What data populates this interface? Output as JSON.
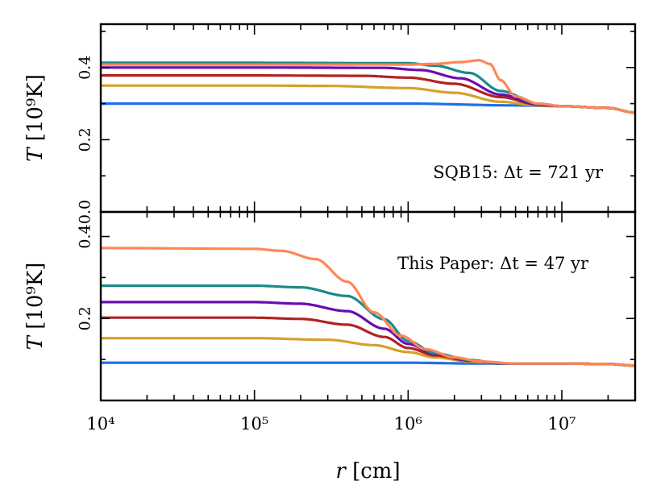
{
  "chart_data": [
    {
      "type": "line",
      "panel": "top",
      "annotation": "SQB15:  Δt = 721 yr",
      "xlabel": "",
      "ylabel": "T [10⁹K]",
      "xscale": "log",
      "xlim": [
        10000,
        30000000
      ],
      "ylim": [
        0.0,
        0.52
      ],
      "yticks": [
        0.0,
        0.2,
        0.4
      ],
      "ytick_labels": [
        "0.0",
        "0.2",
        "0.4"
      ],
      "grid": false,
      "series": [
        {
          "color": "#1f6fe5",
          "x": [
            10000,
            100000,
            1000000,
            5000000,
            10000000,
            20000000,
            30000000
          ],
          "y": [
            0.3,
            0.3,
            0.3,
            0.295,
            0.293,
            0.288,
            0.275
          ]
        },
        {
          "color": "#d6a02a",
          "x": [
            10000,
            100000,
            300000,
            1000000,
            2000000,
            4000000,
            7000000,
            10000000,
            20000000,
            30000000
          ],
          "y": [
            0.35,
            0.35,
            0.349,
            0.343,
            0.33,
            0.305,
            0.295,
            0.293,
            0.288,
            0.275
          ]
        },
        {
          "color": "#b22222",
          "x": [
            10000,
            100000,
            500000,
            1000000,
            2000000,
            4000000,
            7000000,
            10000000,
            20000000,
            30000000
          ],
          "y": [
            0.378,
            0.378,
            0.377,
            0.372,
            0.355,
            0.318,
            0.297,
            0.293,
            0.288,
            0.275
          ]
        },
        {
          "color": "#6a0dad",
          "x": [
            10000,
            100000,
            700000,
            1200000,
            2200000,
            4000000,
            7000000,
            10000000,
            20000000,
            30000000
          ],
          "y": [
            0.4,
            0.4,
            0.399,
            0.393,
            0.37,
            0.325,
            0.298,
            0.293,
            0.288,
            0.275
          ]
        },
        {
          "color": "#1a8a8a",
          "x": [
            10000,
            100000,
            1000000,
            1500000,
            2500000,
            4000000,
            7000000,
            10000000,
            20000000,
            30000000
          ],
          "y": [
            0.413,
            0.413,
            0.412,
            0.405,
            0.385,
            0.335,
            0.3,
            0.293,
            0.288,
            0.275
          ]
        },
        {
          "color": "#ff8656",
          "x": [
            10000,
            100000,
            1000000,
            1500000,
            2200000,
            2900000,
            3400000,
            4000000,
            5000000,
            7000000,
            10000000,
            20000000,
            30000000
          ],
          "y": [
            0.408,
            0.408,
            0.408,
            0.41,
            0.415,
            0.42,
            0.41,
            0.365,
            0.32,
            0.3,
            0.293,
            0.288,
            0.275
          ]
        }
      ]
    },
    {
      "type": "line",
      "panel": "bottom",
      "annotation": "This Paper:  Δt = 47 yr",
      "xlabel": "r [cm]",
      "ylabel": "T [10⁹K]",
      "xscale": "log",
      "xlim": [
        10000,
        30000000
      ],
      "ylim": [
        0.0,
        0.46
      ],
      "yticks": [
        0.2,
        0.4
      ],
      "ytick_labels": [
        "0.2",
        "0.4"
      ],
      "xticks": [
        10000,
        100000,
        1000000,
        10000000
      ],
      "xtick_labels": [
        "10⁴",
        "10⁵",
        "10⁶",
        "10⁷"
      ],
      "grid": false,
      "series": [
        {
          "color": "#1f6fe5",
          "x": [
            10000,
            100000,
            1000000,
            3000000,
            10000000,
            20000000,
            30000000
          ],
          "y": [
            0.092,
            0.092,
            0.092,
            0.09,
            0.09,
            0.089,
            0.085
          ]
        },
        {
          "color": "#d6a02a",
          "x": [
            10000,
            100000,
            300000,
            600000,
            1000000,
            1500000,
            2500000,
            4000000,
            10000000,
            20000000,
            30000000
          ],
          "y": [
            0.152,
            0.152,
            0.148,
            0.135,
            0.118,
            0.105,
            0.095,
            0.09,
            0.09,
            0.089,
            0.085
          ]
        },
        {
          "color": "#b22222",
          "x": [
            10000,
            100000,
            200000,
            400000,
            700000,
            1000000,
            1500000,
            2500000,
            4000000,
            10000000,
            20000000,
            30000000
          ],
          "y": [
            0.202,
            0.202,
            0.199,
            0.185,
            0.155,
            0.128,
            0.11,
            0.097,
            0.09,
            0.09,
            0.089,
            0.085
          ]
        },
        {
          "color": "#6a0dad",
          "x": [
            10000,
            100000,
            200000,
            400000,
            700000,
            1000000,
            1500000,
            2500000,
            4000000,
            10000000,
            20000000,
            30000000
          ],
          "y": [
            0.24,
            0.24,
            0.236,
            0.218,
            0.175,
            0.138,
            0.113,
            0.098,
            0.09,
            0.09,
            0.089,
            0.085
          ]
        },
        {
          "color": "#1a8a8a",
          "x": [
            10000,
            100000,
            200000,
            400000,
            700000,
            1000000,
            1500000,
            2500000,
            4000000,
            10000000,
            20000000,
            30000000
          ],
          "y": [
            0.28,
            0.28,
            0.276,
            0.255,
            0.198,
            0.145,
            0.115,
            0.099,
            0.09,
            0.09,
            0.089,
            0.085
          ]
        },
        {
          "color": "#ff8656",
          "x": [
            10000,
            100000,
            150000,
            250000,
            400000,
            600000,
            900000,
            1300000,
            2000000,
            3000000,
            5000000,
            10000000,
            20000000,
            30000000
          ],
          "y": [
            0.372,
            0.37,
            0.365,
            0.345,
            0.29,
            0.215,
            0.158,
            0.125,
            0.105,
            0.095,
            0.09,
            0.09,
            0.089,
            0.085
          ]
        }
      ]
    }
  ]
}
